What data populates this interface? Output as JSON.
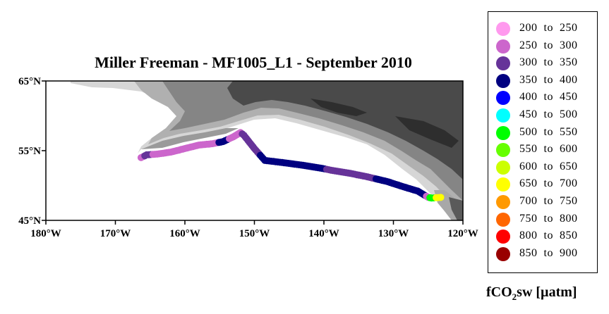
{
  "title": "Miller Freeman - MF1005_L1 - September 2010",
  "map": {
    "lon_range": [
      -180,
      -120
    ],
    "lat_range": [
      45,
      65
    ],
    "lat_ticks": [
      {
        "value": 65,
        "label": "65°N"
      },
      {
        "value": 55,
        "label": "55°N"
      },
      {
        "value": 45,
        "label": "45°N"
      }
    ],
    "lon_ticks": [
      {
        "value": -180,
        "label": "180°W"
      },
      {
        "value": -170,
        "label": "170°W"
      },
      {
        "value": -160,
        "label": "160°W"
      },
      {
        "value": -150,
        "label": "150°W"
      },
      {
        "value": -140,
        "label": "140°W"
      },
      {
        "value": -130,
        "label": "130°W"
      },
      {
        "value": -120,
        "label": "120°W"
      }
    ],
    "colors": {
      "land_dark": "#3c3c3c",
      "land_mid": "#7a7a7a",
      "land_light": "#b4b4b4",
      "land_pale": "#d8d8d8",
      "ocean": "#ffffff"
    }
  },
  "cruise_track": [
    {
      "lon": -166.3,
      "lat": 54.0,
      "bin": 1
    },
    {
      "lon": -165.5,
      "lat": 54.4,
      "bin": 2
    },
    {
      "lon": -164.0,
      "lat": 54.5,
      "bin": 1
    },
    {
      "lon": -162.0,
      "lat": 54.8,
      "bin": 1
    },
    {
      "lon": -160.0,
      "lat": 55.3,
      "bin": 1
    },
    {
      "lon": -158.0,
      "lat": 55.8,
      "bin": 1
    },
    {
      "lon": -156.0,
      "lat": 56.0,
      "bin": 1
    },
    {
      "lon": -154.5,
      "lat": 56.3,
      "bin": 3
    },
    {
      "lon": -153.0,
      "lat": 57.0,
      "bin": 1
    },
    {
      "lon": -152.0,
      "lat": 57.6,
      "bin": 1
    },
    {
      "lon": -151.5,
      "lat": 57.2,
      "bin": 2
    },
    {
      "lon": -150.0,
      "lat": 55.3,
      "bin": 2
    },
    {
      "lon": -148.5,
      "lat": 53.6,
      "bin": 3
    },
    {
      "lon": -146.0,
      "lat": 53.3,
      "bin": 3
    },
    {
      "lon": -143.0,
      "lat": 52.9,
      "bin": 3
    },
    {
      "lon": -140.5,
      "lat": 52.5,
      "bin": 3
    },
    {
      "lon": -139.0,
      "lat": 52.2,
      "bin": 2
    },
    {
      "lon": -136.5,
      "lat": 51.8,
      "bin": 2
    },
    {
      "lon": -134.0,
      "lat": 51.3,
      "bin": 2
    },
    {
      "lon": -131.0,
      "lat": 50.6,
      "bin": 3
    },
    {
      "lon": -128.5,
      "lat": 49.8,
      "bin": 3
    },
    {
      "lon": -126.5,
      "lat": 49.2,
      "bin": 3
    },
    {
      "lon": -125.5,
      "lat": 48.6,
      "bin": 3
    },
    {
      "lon": -125.0,
      "lat": 48.3,
      "bin": 1
    },
    {
      "lon": -124.5,
      "lat": 48.2,
      "bin": 6
    },
    {
      "lon": -123.2,
      "lat": 48.3,
      "bin": 9
    }
  ],
  "legend": {
    "items": [
      {
        "label": "200  to  250",
        "color": "#ff99ee"
      },
      {
        "label": "250  to  300",
        "color": "#cc66cc"
      },
      {
        "label": "300  to  350",
        "color": "#663399"
      },
      {
        "label": "350  to  400",
        "color": "#000080"
      },
      {
        "label": "400  to  450",
        "color": "#0000ff"
      },
      {
        "label": "450  to  500",
        "color": "#00ffff"
      },
      {
        "label": "500  to  550",
        "color": "#00ff00"
      },
      {
        "label": "550  to  600",
        "color": "#66ff00"
      },
      {
        "label": "600  to  650",
        "color": "#ccff00"
      },
      {
        "label": "650  to  700",
        "color": "#ffff00"
      },
      {
        "label": "700  to  750",
        "color": "#ff9900"
      },
      {
        "label": "750  to  800",
        "color": "#ff6600"
      },
      {
        "label": "800  to  850",
        "color": "#ff0000"
      },
      {
        "label": "850  to  900",
        "color": "#990000"
      }
    ],
    "axis_label_main": "fCO",
    "axis_label_sub": "2",
    "axis_label_rest": "sw [µatm]"
  }
}
